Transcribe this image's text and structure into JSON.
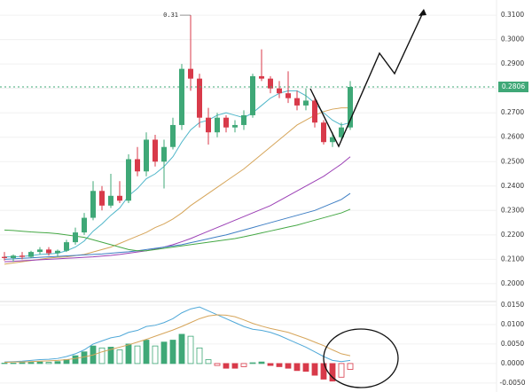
{
  "chart_data": [
    {
      "type": "candlestick",
      "up_color": "#3fa877",
      "down_color": "#d83a4a",
      "open": [
        0.211,
        0.2105,
        0.2115,
        0.211,
        0.213,
        0.214,
        0.2125,
        0.2135,
        0.217,
        0.221,
        0.227,
        0.238,
        0.232,
        0.236,
        0.234,
        0.251,
        0.246,
        0.259,
        0.25,
        0.256,
        0.265,
        0.288,
        0.284,
        0.268,
        0.262,
        0.268,
        0.264,
        0.265,
        0.269,
        0.285,
        0.284,
        0.28,
        0.278,
        0.276,
        0.273,
        0.275,
        0.266,
        0.258,
        0.26,
        0.264
      ],
      "high": [
        0.213,
        0.212,
        0.213,
        0.2135,
        0.215,
        0.215,
        0.214,
        0.218,
        0.223,
        0.229,
        0.242,
        0.24,
        0.245,
        0.242,
        0.253,
        0.256,
        0.262,
        0.261,
        0.259,
        0.268,
        0.29,
        0.31,
        0.286,
        0.272,
        0.27,
        0.269,
        0.267,
        0.271,
        0.286,
        0.296,
        0.285,
        0.283,
        0.287,
        0.279,
        0.28,
        0.276,
        0.267,
        0.262,
        0.266,
        0.283
      ],
      "low": [
        0.2095,
        0.209,
        0.21,
        0.2105,
        0.212,
        0.2115,
        0.211,
        0.213,
        0.216,
        0.22,
        0.226,
        0.23,
        0.231,
        0.233,
        0.233,
        0.244,
        0.244,
        0.248,
        0.239,
        0.255,
        0.263,
        0.279,
        0.264,
        0.257,
        0.26,
        0.262,
        0.262,
        0.263,
        0.268,
        0.283,
        0.278,
        0.276,
        0.274,
        0.271,
        0.271,
        0.264,
        0.257,
        0.256,
        0.259,
        0.263
      ],
      "close": [
        0.2105,
        0.2115,
        0.211,
        0.213,
        0.214,
        0.2125,
        0.2135,
        0.217,
        0.221,
        0.227,
        0.238,
        0.232,
        0.236,
        0.234,
        0.251,
        0.246,
        0.259,
        0.25,
        0.256,
        0.265,
        0.288,
        0.284,
        0.268,
        0.262,
        0.268,
        0.264,
        0.265,
        0.269,
        0.285,
        0.284,
        0.28,
        0.278,
        0.276,
        0.273,
        0.275,
        0.266,
        0.258,
        0.26,
        0.264,
        0.2806
      ],
      "moving_averages": [
        {
          "color": "#4fb6c9",
          "values": [
            0.211,
            0.211,
            0.2112,
            0.2115,
            0.212,
            0.2122,
            0.2125,
            0.2135,
            0.215,
            0.2175,
            0.2215,
            0.2245,
            0.228,
            0.231,
            0.236,
            0.239,
            0.243,
            0.245,
            0.248,
            0.252,
            0.258,
            0.263,
            0.266,
            0.267,
            0.269,
            0.27,
            0.269,
            0.268,
            0.27,
            0.273,
            0.276,
            0.278,
            0.279,
            0.279,
            0.277,
            0.274,
            0.27,
            0.267,
            0.265,
            0.266
          ]
        },
        {
          "color": "#d6a55a",
          "values": [
            0.208,
            0.2085,
            0.209,
            0.2095,
            0.21,
            0.2105,
            0.2108,
            0.211,
            0.2115,
            0.212,
            0.213,
            0.214,
            0.215,
            0.2165,
            0.218,
            0.2195,
            0.221,
            0.223,
            0.2245,
            0.2265,
            0.229,
            0.232,
            0.2345,
            0.237,
            0.2395,
            0.242,
            0.2445,
            0.247,
            0.25,
            0.253,
            0.256,
            0.259,
            0.262,
            0.265,
            0.267,
            0.269,
            0.2705,
            0.2715,
            0.272,
            0.272
          ]
        },
        {
          "color": "#9b3fb5",
          "values": [
            0.209,
            0.2092,
            0.2094,
            0.2096,
            0.2098,
            0.21,
            0.2102,
            0.2104,
            0.2106,
            0.2108,
            0.211,
            0.2113,
            0.2116,
            0.212,
            0.2125,
            0.213,
            0.2135,
            0.2142,
            0.215,
            0.216,
            0.2172,
            0.2185,
            0.22,
            0.2215,
            0.223,
            0.2245,
            0.226,
            0.2275,
            0.229,
            0.2305,
            0.232,
            0.234,
            0.236,
            0.238,
            0.24,
            0.242,
            0.244,
            0.2465,
            0.249,
            0.252
          ]
        },
        {
          "color": "#3f7fc4",
          "values": [
            0.21,
            0.2102,
            0.2104,
            0.2106,
            0.2108,
            0.211,
            0.2112,
            0.2114,
            0.2116,
            0.2118,
            0.212,
            0.2122,
            0.2125,
            0.2128,
            0.2131,
            0.2135,
            0.214,
            0.2145,
            0.215,
            0.2155,
            0.216,
            0.2168,
            0.2176,
            0.2184,
            0.2192,
            0.22,
            0.221,
            0.222,
            0.223,
            0.224,
            0.225,
            0.226,
            0.227,
            0.228,
            0.229,
            0.23,
            0.2315,
            0.233,
            0.2345,
            0.237
          ]
        },
        {
          "color": "#45a845",
          "values": [
            0.222,
            0.2218,
            0.2215,
            0.2212,
            0.221,
            0.2208,
            0.2205,
            0.22,
            0.2195,
            0.219,
            0.218,
            0.217,
            0.216,
            0.215,
            0.214,
            0.2135,
            0.2135,
            0.214,
            0.2145,
            0.215,
            0.2155,
            0.216,
            0.2165,
            0.217,
            0.2175,
            0.218,
            0.2185,
            0.2192,
            0.22,
            0.2208,
            0.2216,
            0.2224,
            0.2232,
            0.224,
            0.225,
            0.226,
            0.227,
            0.228,
            0.229,
            0.2305
          ]
        }
      ],
      "ylim": [
        0.1927,
        0.3162
      ],
      "yticks": [
        {
          "value": 0.2,
          "label": "0.2000"
        },
        {
          "value": 0.21,
          "label": "0.2100"
        },
        {
          "value": 0.22,
          "label": "0.2200"
        },
        {
          "value": 0.23,
          "label": "0.2300"
        },
        {
          "value": 0.24,
          "label": "0.2400"
        },
        {
          "value": 0.25,
          "label": "0.2500"
        },
        {
          "value": 0.26,
          "label": "0.2600"
        },
        {
          "value": 0.27,
          "label": "0.2700"
        },
        {
          "value": 0.28,
          "label": "0.2800"
        },
        {
          "value": 0.29,
          "label": "0.2900"
        },
        {
          "value": 0.3,
          "label": "0.3000"
        },
        {
          "value": 0.31,
          "label": "0.3100"
        }
      ],
      "grid": true
    },
    {
      "type": "macd",
      "histogram": [
        0.0001,
        0.0001,
        0.0002,
        0.0003,
        0.0004,
        0.0003,
        0.0005,
        0.001,
        0.002,
        0.003,
        0.0045,
        0.004,
        0.0042,
        0.0035,
        0.005,
        0.0045,
        0.006,
        0.0045,
        0.0055,
        0.006,
        0.0075,
        0.007,
        0.004,
        0.001,
        -0.0005,
        -0.0012,
        -0.0012,
        -0.0008,
        0.0002,
        0.0004,
        -0.0005,
        -0.0008,
        -0.0012,
        -0.0018,
        -0.002,
        -0.003,
        -0.004,
        -0.0045,
        -0.0035,
        -0.0015
      ],
      "up_color": "#3fa877",
      "down_color": "#d83a4a",
      "macd": {
        "color": "#4fa8d8",
        "values": [
          0.0004,
          0.0005,
          0.0006,
          0.0008,
          0.001,
          0.0011,
          0.0013,
          0.0018,
          0.0025,
          0.0035,
          0.005,
          0.0058,
          0.0066,
          0.007,
          0.008,
          0.0085,
          0.0095,
          0.0098,
          0.0105,
          0.0115,
          0.013,
          0.014,
          0.0145,
          0.0135,
          0.0125,
          0.0115,
          0.0105,
          0.0095,
          0.0088,
          0.0085,
          0.008,
          0.0072,
          0.0062,
          0.0052,
          0.0042,
          0.003,
          0.0018,
          0.0008,
          0.0005,
          0.0008
        ]
      },
      "signal": {
        "color": "#d6a55a",
        "values": [
          0.0003,
          0.0004,
          0.0004,
          0.0005,
          0.0006,
          0.0007,
          0.0008,
          0.001,
          0.0013,
          0.0017,
          0.0022,
          0.003,
          0.0036,
          0.0042,
          0.0048,
          0.0055,
          0.0062,
          0.007,
          0.0078,
          0.0086,
          0.0095,
          0.0105,
          0.0115,
          0.0122,
          0.0125,
          0.0124,
          0.012,
          0.0112,
          0.0103,
          0.0096,
          0.009,
          0.0085,
          0.008,
          0.0072,
          0.0064,
          0.0055,
          0.0046,
          0.0035,
          0.0025,
          0.002
        ]
      },
      "ylim": [
        -0.0073,
        0.0159
      ],
      "yticks": [
        {
          "value": 0.015,
          "label": "0.0150"
        },
        {
          "value": 0.01,
          "label": "0.0100"
        },
        {
          "value": 0.005,
          "label": "0.0050"
        },
        {
          "value": 0,
          "label": "0.0000"
        },
        {
          "value": -0.005,
          "label": "-0.0050"
        }
      ],
      "grid": true
    }
  ]
}
